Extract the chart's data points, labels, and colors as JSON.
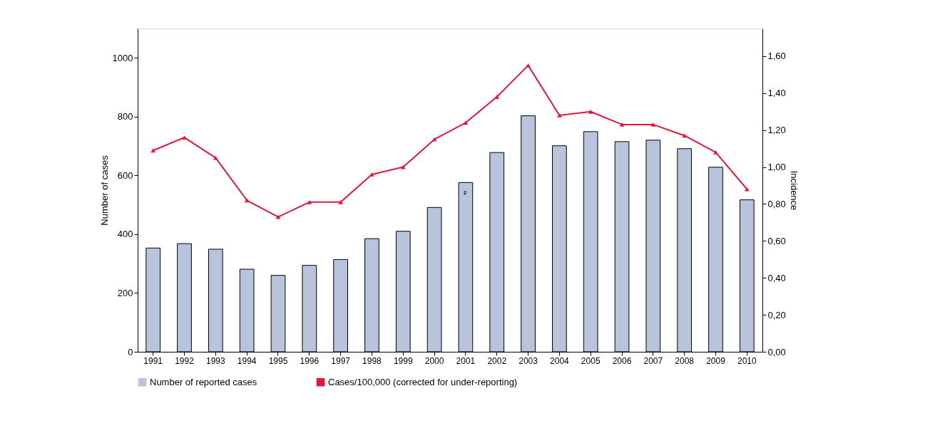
{
  "chart_data": {
    "type": "bar",
    "ylabel": "Number of cases",
    "y2label": "Incidence",
    "categories": [
      "1991",
      "1992",
      "1993",
      "1994",
      "1995",
      "1996",
      "1997",
      "1998",
      "1999",
      "2000",
      "2001",
      "2002",
      "2003",
      "2004",
      "2005",
      "2006",
      "2007",
      "2008",
      "2009",
      "2010"
    ],
    "series": [
      {
        "name": "Number of reported cases",
        "color": "#b8c4dc",
        "values": [
          353,
          368,
          349,
          281,
          260,
          294,
          314,
          385,
          410,
          491,
          576,
          678,
          803,
          701,
          749,
          715,
          720,
          691,
          628,
          517
        ]
      },
      {
        "name": "Cases/100,000 (corrected for under-reporting)",
        "type": "line",
        "axis": "y2",
        "color": "#e8163c",
        "marker": "triangle",
        "line_style": "solid",
        "values": [
          1.09,
          1.16,
          1.05,
          0.82,
          0.73,
          0.81,
          0.81,
          0.96,
          1.0,
          1.15,
          1.24,
          1.38,
          1.55,
          1.28,
          1.3,
          1.23,
          1.23,
          1.17,
          1.08,
          0.88
        ]
      }
    ],
    "ylim": [
      0,
      1100
    ],
    "yticks": [
      0,
      200,
      400,
      600,
      800,
      1000
    ],
    "y2lim": [
      0,
      1.75
    ],
    "y2ticks": [
      {
        "value": 0,
        "label": "0,00"
      },
      {
        "value": 0.2,
        "label": "0,20"
      },
      {
        "value": 0.4,
        "label": "0,40"
      },
      {
        "value": 0.6,
        "label": "0,60"
      },
      {
        "value": 0.8,
        "label": "0,80"
      },
      {
        "value": 1.0,
        "label": "1,00"
      },
      {
        "value": 1.2,
        "label": "1,20"
      },
      {
        "value": 1.4,
        "label": "1,40"
      },
      {
        "value": 1.6,
        "label": "1,60"
      }
    ],
    "annotations": [
      "2"
    ],
    "legend": "bottom",
    "grid": false
  }
}
